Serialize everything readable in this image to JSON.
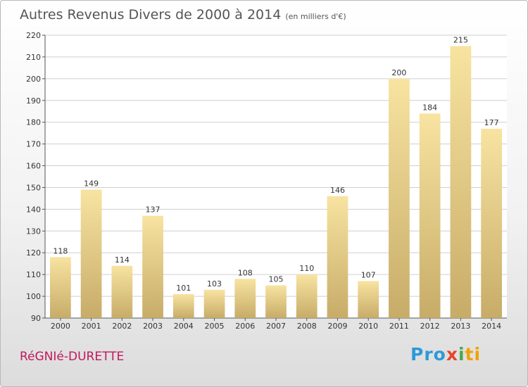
{
  "header": {
    "title": "Autres Revenus Divers de 2000 à 2014",
    "subtitle": "(en milliers d'€)"
  },
  "footer": {
    "commune": "RéGNIé-DURETTE",
    "logo": [
      "Pro",
      "x",
      "i",
      "ti"
    ]
  },
  "colors": {
    "bar_top": "#f8e3a1",
    "bar_bottom": "#c7ac68",
    "grid": "#cfcfcf",
    "commune": "#c2185b"
  },
  "chart_data": {
    "type": "bar",
    "categories": [
      "2000",
      "2001",
      "2002",
      "2003",
      "2004",
      "2005",
      "2006",
      "2007",
      "2008",
      "2009",
      "2010",
      "2011",
      "2012",
      "2013",
      "2014"
    ],
    "values": [
      118,
      149,
      114,
      137,
      101,
      103,
      108,
      105,
      110,
      146,
      107,
      200,
      184,
      215,
      177
    ],
    "title": "Autres Revenus Divers de 2000 à 2014",
    "subtitle": "(en milliers d'€)",
    "xlabel": "",
    "ylabel": "",
    "ylim": [
      90,
      220
    ],
    "yticks": [
      90,
      100,
      110,
      120,
      130,
      140,
      150,
      160,
      170,
      180,
      190,
      200,
      210,
      220
    ],
    "grid": true
  }
}
